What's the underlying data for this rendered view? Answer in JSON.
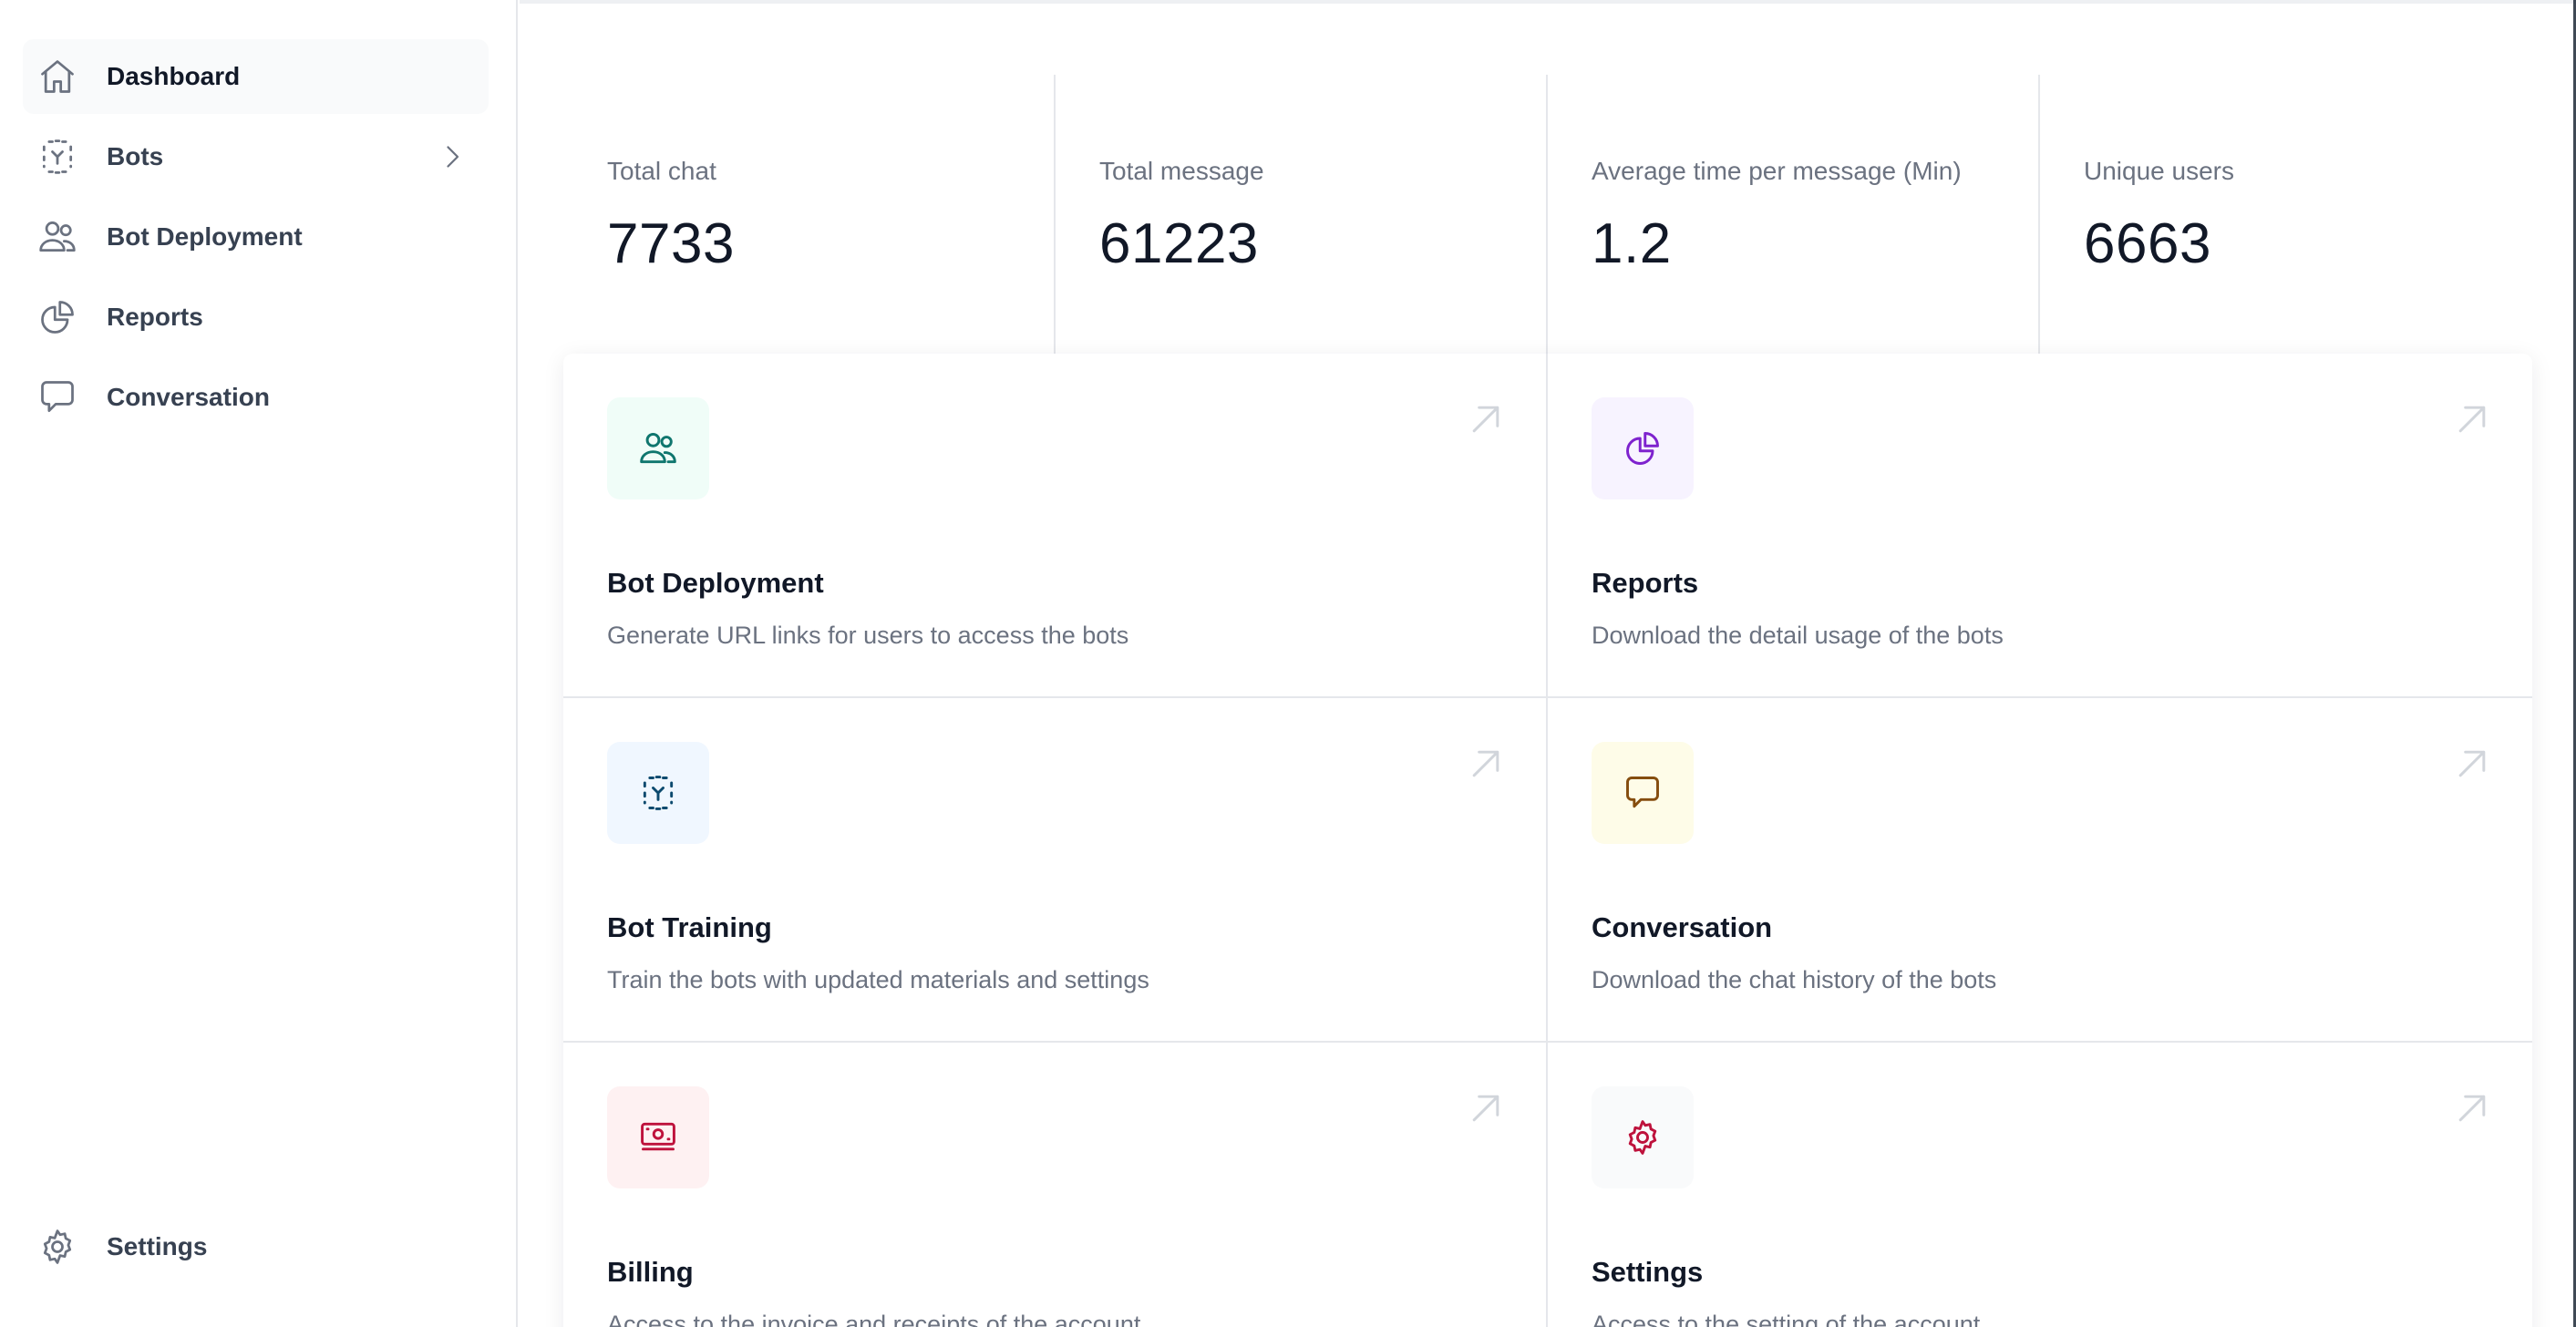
{
  "sidebar": {
    "items": [
      {
        "label": "Dashboard",
        "icon": "home-icon",
        "active": true
      },
      {
        "label": "Bots",
        "icon": "bot-icon",
        "has_children": true
      },
      {
        "label": "Bot Deployment",
        "icon": "users-icon"
      },
      {
        "label": "Reports",
        "icon": "pie-chart-icon"
      },
      {
        "label": "Conversation",
        "icon": "chat-bubble-icon"
      }
    ],
    "bottom": {
      "label": "Settings",
      "icon": "gear-icon"
    }
  },
  "stats": [
    {
      "label": "Total chat",
      "value": "7733"
    },
    {
      "label": "Total message",
      "value": "61223"
    },
    {
      "label": "Average time per message (Min)",
      "value": "1.2"
    },
    {
      "label": "Unique users",
      "value": "6663"
    }
  ],
  "cards": [
    {
      "title": "Bot Deployment",
      "description": "Generate URL links for users to access the bots",
      "icon": "users-icon",
      "icon_bg": "#f0fdf8",
      "icon_color": "#0f766e"
    },
    {
      "title": "Reports",
      "description": "Download the detail usage of the bots",
      "icon": "pie-chart-icon",
      "icon_bg": "#f7f3ff",
      "icon_color": "#7e22ce"
    },
    {
      "title": "Bot Training",
      "description": "Train the bots with updated materials and settings",
      "icon": "bot-icon",
      "icon_bg": "#f0f7ff",
      "icon_color": "#0c4a6e"
    },
    {
      "title": "Conversation",
      "description": "Download the chat history of the bots",
      "icon": "chat-bubble-icon",
      "icon_bg": "#fefce8",
      "icon_color": "#854d0e"
    },
    {
      "title": "Billing",
      "description": "Access to the invoice and receipts of the account",
      "icon": "banknote-icon",
      "icon_bg": "#fef1f2",
      "icon_color": "#be123c"
    },
    {
      "title": "Settings",
      "description": "Access to the setting of the account",
      "icon": "gear-icon",
      "icon_bg": "#f9fafb",
      "icon_color": "#be123c"
    }
  ],
  "colors": {
    "nav_icon": "#6b7280",
    "arrow": "#d1d5db",
    "divider": "#e5e7eb"
  }
}
